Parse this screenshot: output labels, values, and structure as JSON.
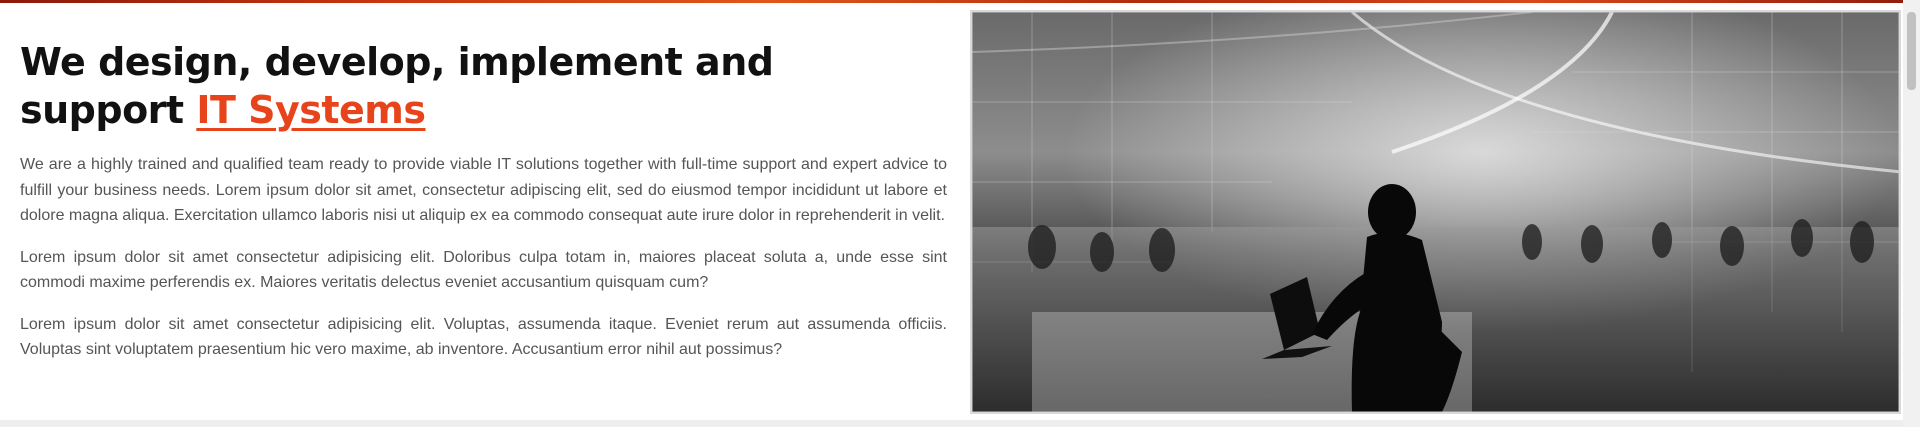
{
  "headline": {
    "text": "We design, develop, implement and support ",
    "highlight": "IT Systems",
    "highlight_color": "#e8441c"
  },
  "paragraphs": [
    "We are a highly trained and qualified team ready to provide viable IT solutions together with full-time support and expert advice to fulfill your business needs. Lorem ipsum dolor sit amet, consectetur adipiscing elit, sed do eiusmod tempor incididunt ut labore et dolore magna aliqua. Exercitation ullamco laboris nisi ut aliquip ex ea commodo consequat aute irure dolor in reprehenderit in velit.",
    "Lorem ipsum dolor sit amet consectetur adipisicing elit. Doloribus culpa totam in, maiores placeat soluta a, unde esse sint commodi maxime perferendis ex. Maiores veritatis delectus eveniet accusantium quisquam cum?",
    "Lorem ipsum dolor sit amet consectetur adipisicing elit. Voluptas, assumenda itaque. Eveniet rerum aut assumenda officiis. Voluptas sint voluptatem praesentium hic vero maxime, ab inventore. Accusantium error nihil aut possimus?"
  ],
  "colors": {
    "accent": "#e8441c",
    "heading": "#111111",
    "body_text": "#555555"
  }
}
